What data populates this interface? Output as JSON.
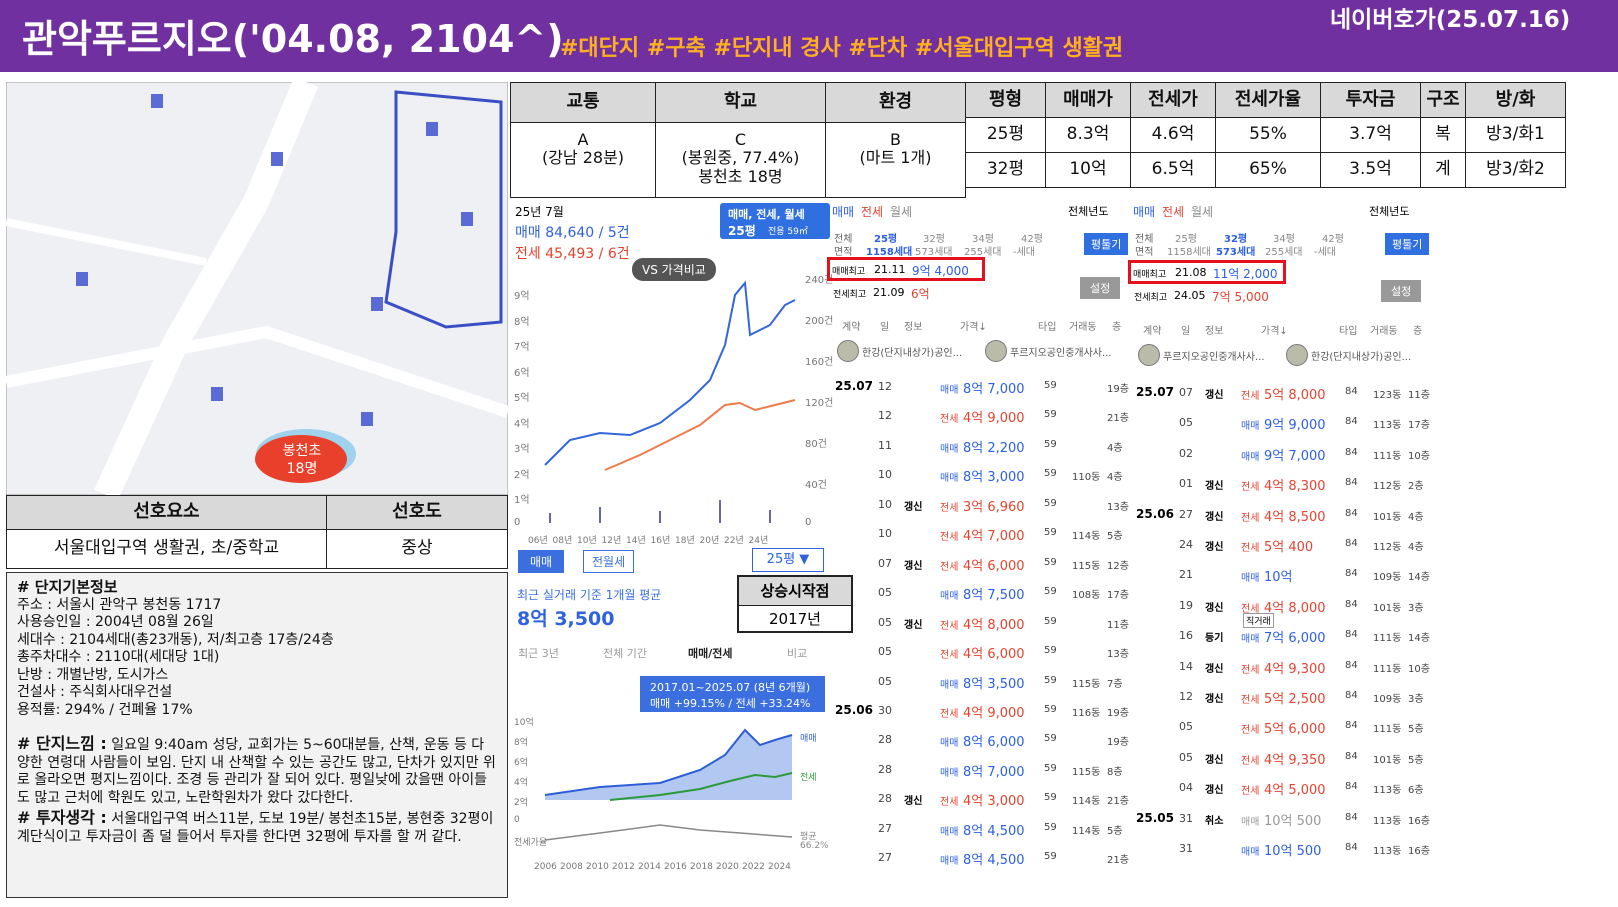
{
  "header": {
    "title": "관악푸르지오('04.08, 2104^)",
    "tags": "#대단지 #구축 #단지내 경사 #단차 #서울대입구역 생활권",
    "source": "네이버호가(25.07.16)"
  },
  "map": {
    "school": "봉천초",
    "students": "18명"
  },
  "preference_table": {
    "headers": [
      "선호요소",
      "선호도"
    ],
    "row": [
      "서울대입구역 생활권, 초/중학교",
      "중상"
    ]
  },
  "info": {
    "title": "# 단지기본정보",
    "lines": [
      "주소 : 서울시 관악구 봉천동 1717",
      "사용승인일 : 2004년 08월 26일",
      "세대수 : 2104세대(총23개동), 저/최고층 17층/24층",
      "총주차대수 : 2110대(세대당 1대)",
      "난방 : 개별난방, 도시가스",
      "건설사 : 주식회사대우건설",
      "용적률: 294% / 건폐율 17%"
    ],
    "feeling_label": "# 단지느낌 :",
    "feeling": " 일요일 9:40am 성당, 교회가는 5~60대분들, 산책, 운동 등 다양한 연령대 사람들이 보임. 단지 내 산책할 수 있는 공간도 많고, 단차가 있지만 위로 올라오면 평지느낌이다. 조경 등 관리가 잘 되어 있다. 평일낮에 갔을땐 아이들도 많고 근처에 학원도 있고, 노란학원차가 왔다 갔다한다.",
    "invest_label": "# 투자생각 :",
    "invest": " 서울대입구역 버스11분, 도보 19분/ 봉천초15분, 봉현중 32평이 계단식이고 투자금이 좀 덜 들어서 투자를 한다면 32평에 투자를 할 꺼 같다."
  },
  "location_table": {
    "headers": [
      "교통",
      "학교",
      "환경"
    ],
    "cells": [
      [
        "A",
        "(강남 28분)"
      ],
      [
        "C",
        "(봉원중, 77.4%)",
        "봉천초 18명"
      ],
      [
        "B",
        "(마트 1개)"
      ]
    ]
  },
  "price_table": {
    "headers": [
      "평형",
      "매매가",
      "전세가",
      "전세가율",
      "투자금",
      "구조",
      "방/화"
    ],
    "rows": [
      [
        "25평",
        "8.3억",
        "4.6억",
        "55%",
        "3.7억",
        "복",
        "방3/화1"
      ],
      [
        "32평",
        "10억",
        "6.5억",
        "65%",
        "3.5억",
        "계",
        "방3/화2"
      ]
    ]
  },
  "chart_panel": {
    "month": "25년 7월",
    "sale": "매매 84,640 / 5건",
    "jeonse": "전세 45,493 / 6건",
    "selector": "매매, 전세, 월세",
    "size": "25평",
    "area": "전용 59㎡",
    "compare": "VS 가격비교",
    "y_left": [
      "9억",
      "8억",
      "7억",
      "6억",
      "5억",
      "4억",
      "3억",
      "2억",
      "1억",
      "0"
    ],
    "y_right": [
      "240건",
      "200건",
      "160건",
      "120건",
      "80건",
      "40건",
      "0"
    ],
    "x": [
      "06년",
      "08년",
      "10년",
      "12년",
      "14년",
      "16년",
      "18년",
      "20년",
      "22년",
      "24년"
    ],
    "tabs": [
      "매매",
      "전월세"
    ],
    "size_select": "25평 ▼",
    "avg_label": "최근 실거래 기준 1개월 평균",
    "avg_value": "8억 3,500",
    "periods": [
      "최근 3년",
      "전체 기간",
      "매매/전세",
      "비교"
    ],
    "tooltip": [
      "2017.01~2025.07 (8년 6개월)",
      "매매 +99.15% / 전세 +33.24%"
    ],
    "y2": [
      "10억",
      "8억",
      "6억",
      "4억",
      "2억",
      "0",
      "전세가율"
    ],
    "x2": [
      "2006",
      "2008",
      "2010",
      "2012",
      "2014",
      "2016",
      "2018",
      "2020",
      "2022",
      "2024"
    ],
    "legend": [
      "매매",
      "전세",
      "평균",
      "66.2%"
    ]
  },
  "rise_box": {
    "label": "상승시작점",
    "value": "2017년"
  },
  "listings": [
    {
      "tabs": [
        "매매",
        "전세",
        "월세"
      ],
      "year": "전체년도",
      "area": [
        "전체",
        "면적"
      ],
      "sizes": [
        [
          "25평",
          "1158세대"
        ],
        [
          "32평",
          "573세대"
        ],
        [
          "34평",
          "255세대"
        ],
        [
          "42평",
          "-세대"
        ]
      ],
      "button": "평툴기",
      "sale_max": {
        "label": "매매최고",
        "date": "21.11",
        "price": "9억 4,000"
      },
      "jeonse_max": {
        "label": "전세최고",
        "date": "21.09",
        "price": "6억"
      },
      "setting": "설정",
      "columns": [
        "계약",
        "일",
        "정보",
        "가격↓",
        "타입",
        "거래동",
        "층"
      ],
      "agents": [
        "한강(단지내상가)공인...",
        "푸르지오공인중개사사..."
      ],
      "rows": [
        {
          "month": "25.07",
          "day": "12",
          "kind": "매매",
          "price": "8억 7,000",
          "type": "59",
          "floor": "19층"
        },
        {
          "day": "12",
          "kind": "전세",
          "price": "4억 9,000",
          "type": "59",
          "floor": "21층"
        },
        {
          "day": "11",
          "kind": "매매",
          "price": "8억 2,200",
          "type": "59",
          "floor": "4층"
        },
        {
          "day": "10",
          "kind": "매매",
          "price": "8억 3,000",
          "type": "59",
          "dong": "110동",
          "floor": "4층"
        },
        {
          "day": "10",
          "info": "갱신",
          "kind": "전세",
          "price": "3억 6,960",
          "type": "59",
          "floor": "13층"
        },
        {
          "day": "10",
          "kind": "전세",
          "price": "4억 7,000",
          "type": "59",
          "dong": "114동",
          "floor": "5층"
        },
        {
          "day": "07",
          "info": "갱신",
          "kind": "전세",
          "price": "4억 6,000",
          "type": "59",
          "dong": "115동",
          "floor": "12층"
        },
        {
          "day": "05",
          "kind": "매매",
          "price": "8억 7,500",
          "type": "59",
          "dong": "108동",
          "floor": "17층"
        },
        {
          "day": "05",
          "info": "갱신",
          "kind": "전세",
          "price": "4억 8,000",
          "type": "59",
          "floor": "11층"
        },
        {
          "day": "05",
          "kind": "전세",
          "price": "4억 6,000",
          "type": "59",
          "floor": "13층"
        },
        {
          "day": "05",
          "kind": "매매",
          "price": "8억 3,500",
          "type": "59",
          "dong": "115동",
          "floor": "7층"
        },
        {
          "month": "25.06",
          "day": "30",
          "kind": "전세",
          "price": "4억 9,000",
          "type": "59",
          "dong": "116동",
          "floor": "19층"
        },
        {
          "day": "28",
          "kind": "매매",
          "price": "8억 6,000",
          "type": "59",
          "floor": "19층"
        },
        {
          "day": "28",
          "kind": "매매",
          "price": "8억 7,000",
          "type": "59",
          "dong": "115동",
          "floor": "8층"
        },
        {
          "day": "28",
          "info": "갱신",
          "kind": "전세",
          "price": "4억 3,000",
          "type": "59",
          "dong": "114동",
          "floor": "21층"
        },
        {
          "day": "27",
          "kind": "매매",
          "price": "8억 4,500",
          "type": "59",
          "dong": "114동",
          "floor": "5층"
        },
        {
          "day": "27",
          "kind": "매매",
          "price": "8억 4,500",
          "type": "59",
          "floor": "21층"
        }
      ]
    },
    {
      "tabs": [
        "매매",
        "전세",
        "월세"
      ],
      "year": "전체년도",
      "area": [
        "전체",
        "면적"
      ],
      "sizes": [
        [
          "25평",
          "1158세대"
        ],
        [
          "32평",
          "573세대"
        ],
        [
          "34평",
          "255세대"
        ],
        [
          "42평",
          "-세대"
        ]
      ],
      "button": "평툴기",
      "sale_max": {
        "label": "매매최고",
        "date": "21.08",
        "price": "11억 2,000"
      },
      "jeonse_max": {
        "label": "전세최고",
        "date": "24.05",
        "price": "7억 5,000"
      },
      "setting": "설정",
      "columns": [
        "계약",
        "일",
        "정보",
        "가격↓",
        "타입",
        "거래동",
        "층"
      ],
      "agents": [
        "푸르지오공인중개사사...",
        "한강(단지내상가)공인..."
      ],
      "rows": [
        {
          "month": "25.07",
          "day": "07",
          "info": "갱신",
          "kind": "전세",
          "price": "5억 8,000",
          "type": "84",
          "dong": "123동",
          "floor": "11층"
        },
        {
          "day": "05",
          "kind": "매매",
          "price": "9억 9,000",
          "type": "84",
          "dong": "113동",
          "floor": "17층"
        },
        {
          "day": "02",
          "kind": "매매",
          "price": "9억 7,000",
          "type": "84",
          "dong": "111동",
          "floor": "10층"
        },
        {
          "day": "01",
          "info": "갱신",
          "kind": "전세",
          "price": "4억 8,300",
          "type": "84",
          "dong": "112동",
          "floor": "2층"
        },
        {
          "month": "25.06",
          "day": "27",
          "info": "갱신",
          "kind": "전세",
          "price": "4억 8,500",
          "type": "84",
          "dong": "101동",
          "floor": "4층"
        },
        {
          "day": "24",
          "info": "갱신",
          "kind": "전세",
          "price": "5억 400",
          "type": "84",
          "dong": "112동",
          "floor": "4층"
        },
        {
          "day": "21",
          "kind": "매매",
          "price": "10억",
          "type": "84",
          "dong": "109동",
          "floor": "14층"
        },
        {
          "day": "19",
          "info": "갱신",
          "kind": "전세",
          "price": "4억 8,000",
          "type": "84",
          "dong": "101동",
          "floor": "3층"
        },
        {
          "day": "16",
          "info": "등기",
          "tag": "직거래",
          "kind": "매매",
          "price": "7억 6,000",
          "type": "84",
          "dong": "111동",
          "floor": "14층"
        },
        {
          "day": "14",
          "info": "갱신",
          "kind": "전세",
          "price": "4억 9,300",
          "type": "84",
          "dong": "111동",
          "floor": "10층"
        },
        {
          "day": "12",
          "info": "갱신",
          "kind": "전세",
          "price": "5억 2,500",
          "type": "84",
          "dong": "109동",
          "floor": "3층"
        },
        {
          "day": "05",
          "kind": "전세",
          "price": "5억 6,000",
          "type": "84",
          "dong": "111동",
          "floor": "5층"
        },
        {
          "day": "05",
          "info": "갱신",
          "kind": "전세",
          "price": "4억 9,350",
          "type": "84",
          "dong": "101동",
          "floor": "5층"
        },
        {
          "day": "04",
          "info": "갱신",
          "kind": "전세",
          "price": "4억 5,000",
          "type": "84",
          "dong": "113동",
          "floor": "6층"
        },
        {
          "month": "25.05",
          "day": "31",
          "info": "취소",
          "kind": "매매",
          "price": "10억 500",
          "type": "84",
          "dong": "113동",
          "floor": "16층",
          "cancelled": true
        },
        {
          "day": "31",
          "kind": "매매",
          "price": "10억 500",
          "type": "84",
          "dong": "113동",
          "floor": "16층"
        }
      ]
    }
  ]
}
